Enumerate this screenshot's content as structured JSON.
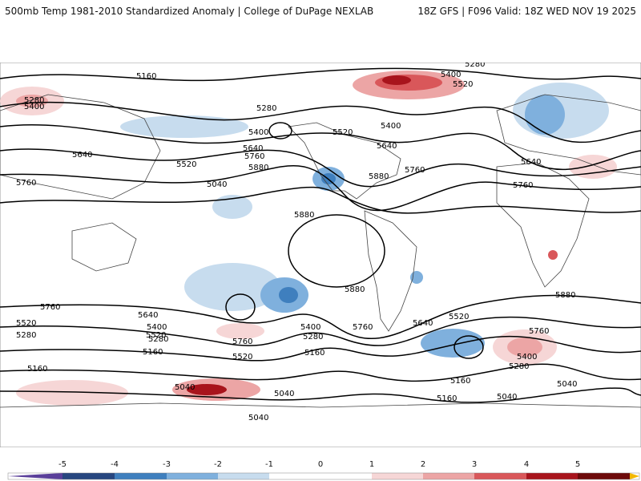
{
  "header": {
    "title_left": "500mb Temp 1981-2010 Standardized Anomaly | College of DuPage NEXLAB",
    "title_right": "18Z GFS | F096 Valid: 18Z WED NOV 19 2025"
  },
  "colors": {
    "neg5": "#5a3f9a",
    "neg4": "#27467f",
    "neg3": "#3f7fbe",
    "neg2": "#7fb0dd",
    "neg1": "#c7dcee",
    "zero": "#ffffff",
    "pos1": "#f6d6d6",
    "pos2": "#eca5a5",
    "pos3": "#d9575a",
    "pos4": "#a8141c",
    "pos5": "#6d0a0a",
    "cap": "#f4b800",
    "contour": "#000000",
    "coast": "#444444"
  },
  "contour_labels": {
    "heights": [
      "5160",
      "5280",
      "5400",
      "5520",
      "5640",
      "5760",
      "5880",
      "5040"
    ]
  },
  "colorbar": {
    "ticks": [
      "-5",
      "-4",
      "-3",
      "-2",
      "-1",
      "0",
      "1",
      "2",
      "3",
      "4",
      "5"
    ]
  }
}
